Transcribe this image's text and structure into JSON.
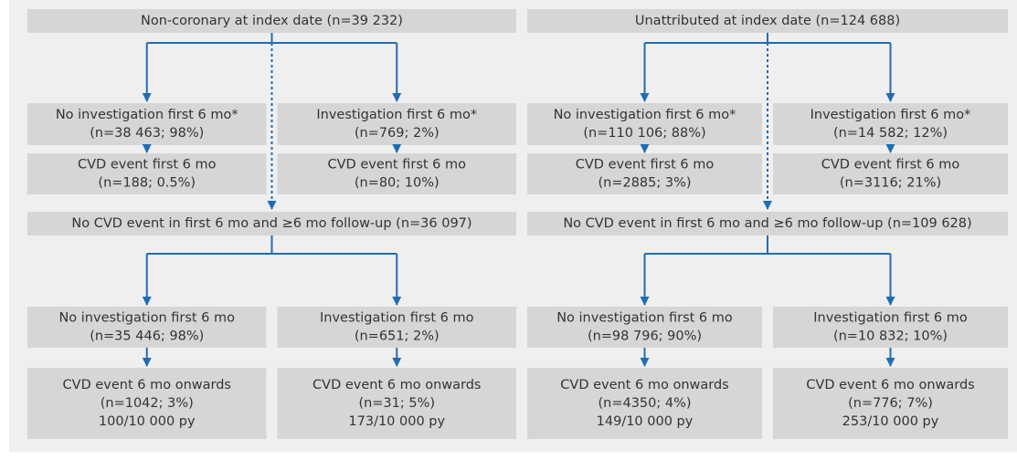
{
  "panels": [
    {
      "title": "Non-coronary at index date (n=39 232)",
      "first": [
        {
          "box": [
            "No investigation first 6 mo*",
            "(n=38 463; 98%)"
          ],
          "event": [
            "CVD event first 6 mo",
            "(n=188; 0.5%)"
          ]
        },
        {
          "box": [
            "Investigation first 6 mo*",
            "(n=769; 2%)"
          ],
          "event": [
            "CVD event first 6 mo",
            "(n=80; 10%)"
          ]
        }
      ],
      "followup": "No CVD event in first 6 mo and ≥6 mo follow-up (n=36 097)",
      "later": [
        {
          "box": [
            "No investigation first 6 mo",
            "(n=35 446; 98%)"
          ],
          "event": [
            "CVD event 6 mo onwards",
            "(n=1042; 3%)",
            "100/10 000 py"
          ]
        },
        {
          "box": [
            "Investigation first 6 mo",
            "(n=651; 2%)"
          ],
          "event": [
            "CVD event 6 mo onwards",
            "(n=31; 5%)",
            "173/10 000 py"
          ]
        }
      ]
    },
    {
      "title": "Unattributed at index date (n=124 688)",
      "first": [
        {
          "box": [
            "No investigation first 6 mo*",
            "(n=110 106; 88%)"
          ],
          "event": [
            "CVD event first 6 mo",
            "(n=2885; 3%)"
          ]
        },
        {
          "box": [
            "Investigation first 6 mo*",
            "(n=14 582; 12%)"
          ],
          "event": [
            "CVD event first 6 mo",
            "(n=3116; 21%)"
          ]
        }
      ],
      "followup": "No CVD event in first 6 mo and ≥6 mo follow-up (n=109 628)",
      "later": [
        {
          "box": [
            "No investigation first 6 mo",
            "(n=98 796; 90%)"
          ],
          "event": [
            "CVD event 6 mo onwards",
            "(n=4350; 4%)",
            "149/10 000 py"
          ]
        },
        {
          "box": [
            "Investigation first 6 mo",
            "(n=10 832; 10%)"
          ],
          "event": [
            "CVD event 6 mo onwards",
            "(n=776; 7%)",
            "253/10 000 py"
          ]
        }
      ]
    }
  ]
}
